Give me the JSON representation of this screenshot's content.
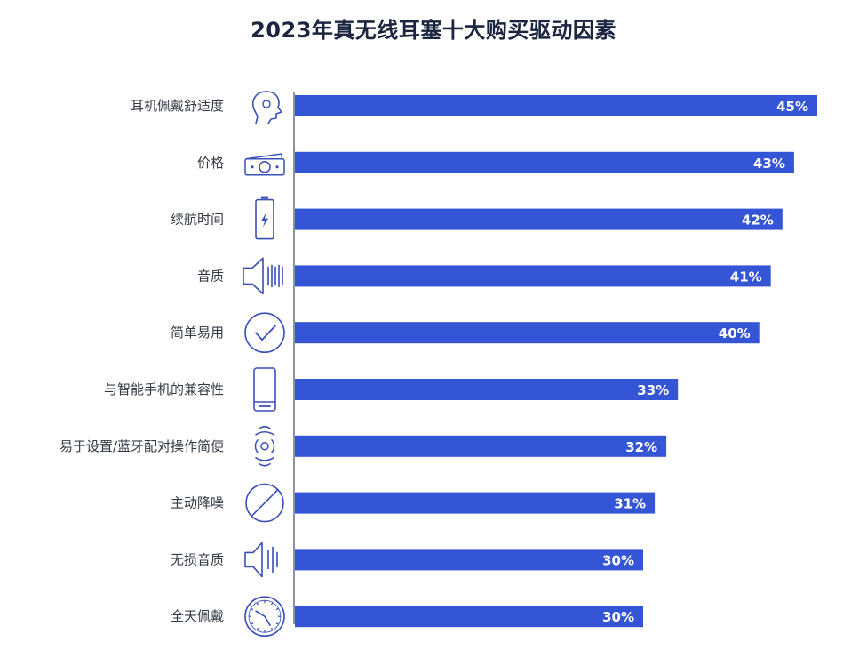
{
  "chart_data": {
    "type": "bar",
    "orientation": "horizontal",
    "title": "2023年真无线耳塞十大购买驱动因素",
    "categories": [
      "耳机佩戴舒适度",
      "价格",
      "续航时间",
      "音质",
      "简单易用",
      "与智能手机的兼容性",
      "易于设置/蓝牙配对操作简便",
      "主动降噪",
      "无损音质",
      "全天佩戴"
    ],
    "icons": [
      "head-icon",
      "money-icon",
      "battery-icon",
      "speaker-wave-icon",
      "checkmark-circle-icon",
      "smartphone-icon",
      "pairing-signal-icon",
      "prohibited-circle-icon",
      "speaker-lossless-icon",
      "clock-icon"
    ],
    "values": [
      45,
      43,
      42,
      41,
      40,
      33,
      32,
      31,
      30,
      30
    ],
    "value_labels": [
      "45%",
      "43%",
      "42%",
      "41%",
      "40%",
      "33%",
      "32%",
      "31%",
      "30%",
      "30%"
    ],
    "unit": "%",
    "xlim": [
      0,
      45
    ],
    "xlabel": "",
    "ylabel": "",
    "grid": false,
    "bar_color": "#3355d6",
    "icon_color": "#3a4fb8"
  }
}
